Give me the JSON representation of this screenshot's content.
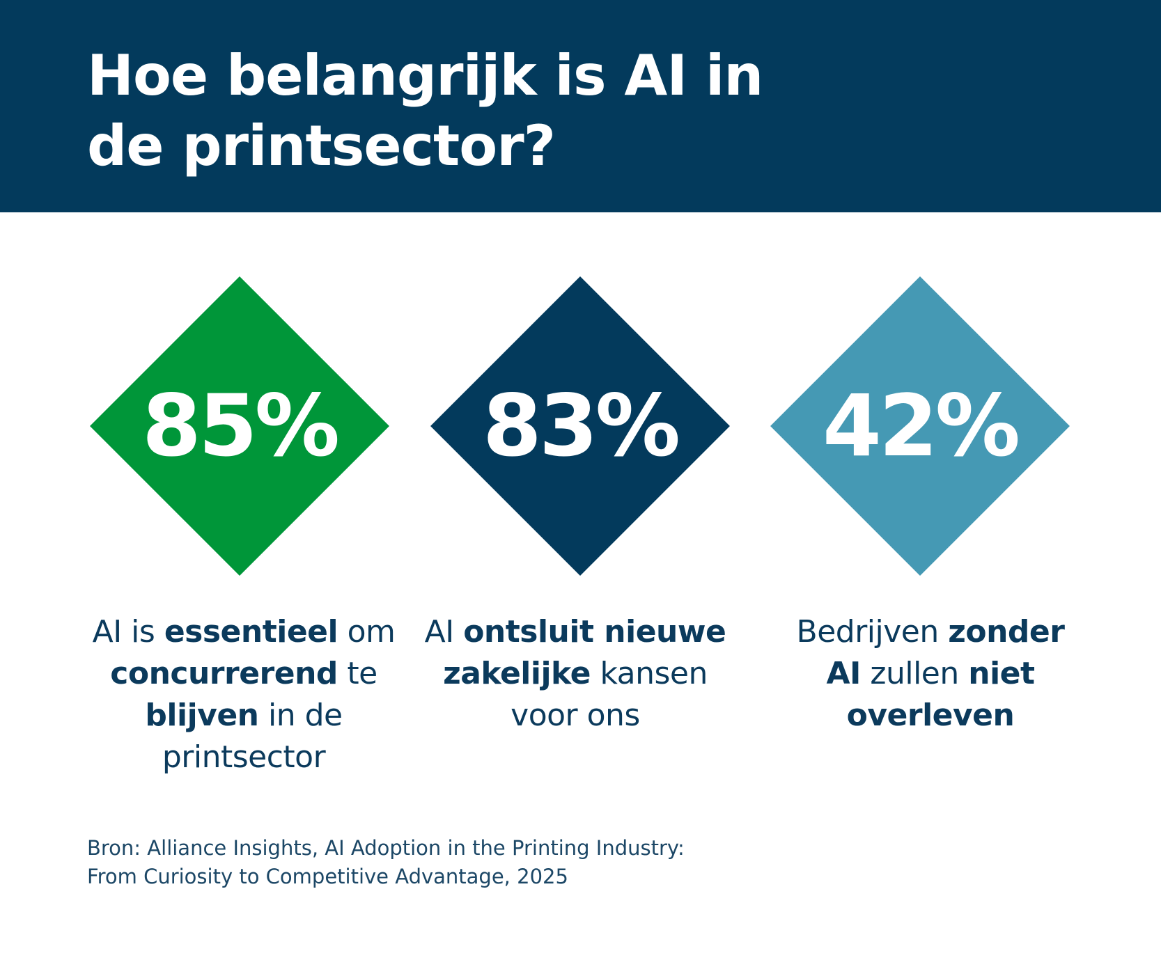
{
  "title": "Hoe belangrijk is AI in de printsector?",
  "colors": {
    "header": "#033a5c",
    "green": "#009639",
    "navy": "#033a5c",
    "light_blue": "#4599b4",
    "text": "#0b3a5c"
  },
  "stats": [
    {
      "value": "85%",
      "color": "#009639",
      "caption": [
        {
          "t": "AI is ",
          "b": false
        },
        {
          "t": "essentieel",
          "b": true
        },
        {
          "t": " om ",
          "b": false
        },
        {
          "t": "concurrerend",
          "b": true
        },
        {
          "t": " te ",
          "b": false
        },
        {
          "t": "blijven",
          "b": true
        },
        {
          "t": " in de printsector",
          "b": false
        }
      ]
    },
    {
      "value": "83%",
      "color": "#033a5c",
      "caption": [
        {
          "t": "AI ",
          "b": false
        },
        {
          "t": "ontsluit nieuwe zakelijke",
          "b": true
        },
        {
          "t": " kansen voor ons",
          "b": false
        }
      ]
    },
    {
      "value": "42%",
      "color": "#4599b4",
      "caption": [
        {
          "t": "Bedrijven ",
          "b": false
        },
        {
          "t": "zonder AI",
          "b": true
        },
        {
          "t": " zullen ",
          "b": false
        },
        {
          "t": "niet overleven",
          "b": true
        }
      ]
    }
  ],
  "source": {
    "line1": "Bron: Alliance Insights, AI Adoption in the Printing Industry:",
    "line2": "From Curiosity to Competitive Advantage, 2025"
  }
}
